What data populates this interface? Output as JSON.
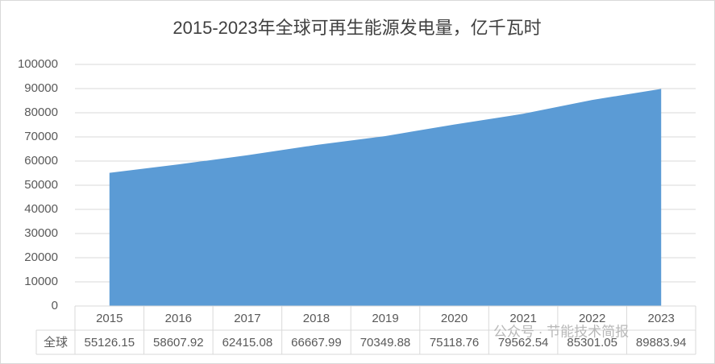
{
  "chart_data": {
    "type": "area",
    "title": "2015-2023年全球可再生能源发电量，亿千瓦时",
    "categories": [
      "2015",
      "2016",
      "2017",
      "2018",
      "2019",
      "2020",
      "2021",
      "2022",
      "2023"
    ],
    "series": [
      {
        "name": "全球",
        "color": "#5b9bd5",
        "values": [
          55126.15,
          58607.92,
          62415.08,
          66667.99,
          70349.88,
          75118.76,
          79562.54,
          85301.05,
          89883.94
        ]
      }
    ],
    "ylim": [
      0,
      100000
    ],
    "yticks": [
      0,
      10000,
      20000,
      30000,
      40000,
      50000,
      60000,
      70000,
      80000,
      90000,
      100000
    ],
    "grid": true,
    "data_table": true
  },
  "watermark": "公众号 · 节能技术简报"
}
